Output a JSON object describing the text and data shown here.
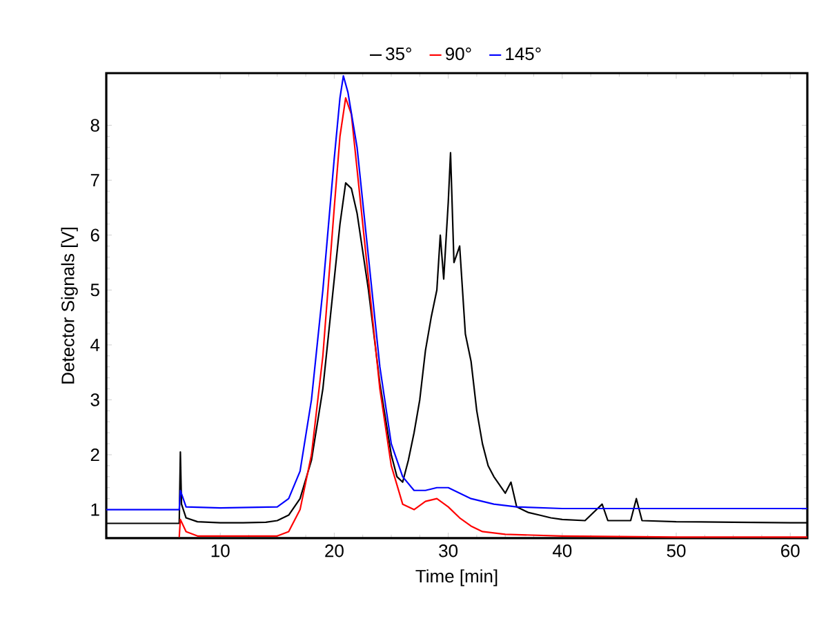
{
  "chart_data": {
    "type": "line",
    "xlabel": "Time [min]",
    "ylabel": "Detector Signals [V]",
    "xlim": [
      0,
      61.5
    ],
    "ylim": [
      0.48,
      8.95
    ],
    "xticks": [
      10,
      20,
      30,
      40,
      50,
      60
    ],
    "yticks": [
      1,
      2,
      3,
      4,
      5,
      6,
      7,
      8
    ],
    "legend": "top",
    "grid": false,
    "marker": "none",
    "line_style": "solid",
    "series": [
      {
        "name": "35°",
        "color": "#000000",
        "x": [
          0,
          6.4,
          6.5,
          6.6,
          7,
          8,
          10,
          12,
          14,
          15,
          16,
          17,
          18,
          19,
          20,
          20.5,
          21,
          21.5,
          22,
          23,
          24,
          25,
          25.5,
          26,
          26.5,
          27,
          27.5,
          28,
          28.5,
          29,
          29.3,
          29.6,
          30,
          30.2,
          30.5,
          31,
          31.5,
          32,
          32.5,
          33,
          33.5,
          34,
          35,
          35.5,
          36,
          37,
          38,
          39,
          40,
          42,
          43.5,
          44,
          46,
          46.5,
          47,
          50,
          55,
          60,
          61.5
        ],
        "values": [
          0.75,
          0.75,
          2.05,
          1.1,
          0.85,
          0.78,
          0.76,
          0.76,
          0.77,
          0.8,
          0.9,
          1.2,
          1.9,
          3.2,
          5.2,
          6.2,
          6.95,
          6.85,
          6.4,
          5.0,
          3.3,
          2.0,
          1.6,
          1.5,
          1.9,
          2.4,
          3.0,
          3.9,
          4.5,
          5.0,
          6.0,
          5.2,
          6.6,
          7.5,
          5.5,
          5.8,
          4.2,
          3.7,
          2.8,
          2.2,
          1.8,
          1.6,
          1.3,
          1.5,
          1.05,
          0.95,
          0.9,
          0.85,
          0.82,
          0.8,
          1.1,
          0.8,
          0.8,
          1.2,
          0.8,
          0.78,
          0.77,
          0.76,
          0.76
        ]
      },
      {
        "name": "90°",
        "color": "#ff0000",
        "x": [
          6.4,
          6.5,
          7,
          8,
          10,
          15,
          16,
          17,
          18,
          19,
          20,
          20.5,
          21,
          21.5,
          22,
          23,
          24,
          25,
          26,
          27,
          28,
          29,
          30,
          31,
          32,
          33,
          35,
          40,
          50,
          61.5
        ],
        "values": [
          0.5,
          0.82,
          0.6,
          0.52,
          0.52,
          0.52,
          0.6,
          1.0,
          2.0,
          3.8,
          6.5,
          7.8,
          8.5,
          8.2,
          7.2,
          5.2,
          3.2,
          1.8,
          1.1,
          1.0,
          1.15,
          1.2,
          1.05,
          0.85,
          0.7,
          0.6,
          0.55,
          0.52,
          0.5,
          0.5
        ]
      },
      {
        "name": "145°",
        "color": "#0000ff",
        "x": [
          0,
          6.4,
          6.5,
          7,
          10,
          15,
          16,
          17,
          18,
          19,
          20,
          20.5,
          20.8,
          21.2,
          22,
          23,
          24,
          25,
          26,
          27,
          28,
          29,
          30,
          31,
          32,
          34,
          36,
          40,
          50,
          61.5
        ],
        "values": [
          1.0,
          1.0,
          1.35,
          1.05,
          1.03,
          1.05,
          1.2,
          1.7,
          3.0,
          5.0,
          7.4,
          8.5,
          8.9,
          8.6,
          7.6,
          5.6,
          3.6,
          2.2,
          1.6,
          1.35,
          1.35,
          1.4,
          1.4,
          1.3,
          1.2,
          1.1,
          1.05,
          1.02,
          1.02,
          1.02
        ]
      }
    ]
  }
}
